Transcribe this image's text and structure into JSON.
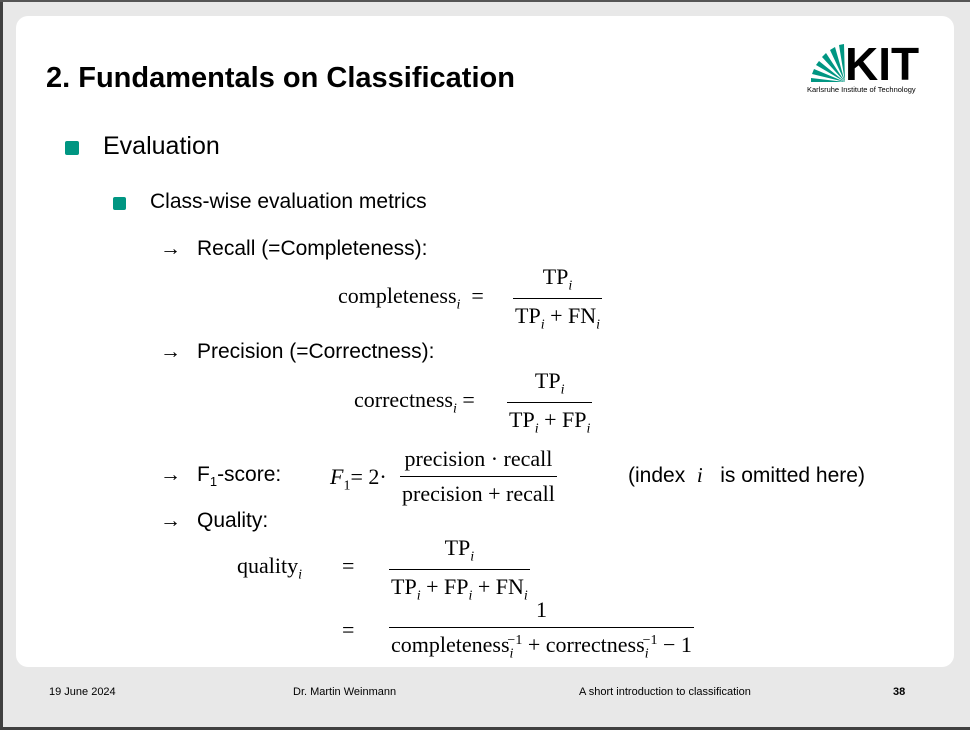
{
  "slide": {
    "title": "2. Fundamentals on Classification",
    "logo": {
      "mark": "KIT",
      "name": "Karlsruhe Institute of Technology",
      "color": "#009682"
    },
    "bullets": {
      "level1": "Evaluation",
      "level2": "Class-wise evaluation metrics"
    },
    "items": {
      "recall_label": "Recall (=Completeness):",
      "precision_label": "Precision (=Correctness):",
      "f1_label_prefix": "F",
      "f1_label_sub": "1",
      "f1_label_suffix": "-score:",
      "f1_note_prefix": "(index",
      "f1_note_var": "i",
      "f1_note_suffix": "is omitted here)",
      "quality_label": "Quality:"
    },
    "formulas": {
      "completeness_lhs": "completeness",
      "correctness_lhs": "correctness",
      "quality_lhs": "quality",
      "f1_lhs": "F",
      "precision_word": "precision",
      "recall_word": "recall",
      "one": "1"
    },
    "arrow_icon": "→"
  },
  "footer": {
    "date": "19 June 2024",
    "author": "Dr. Martin Weinmann",
    "topic": "A short introduction to classification",
    "page": "38"
  }
}
